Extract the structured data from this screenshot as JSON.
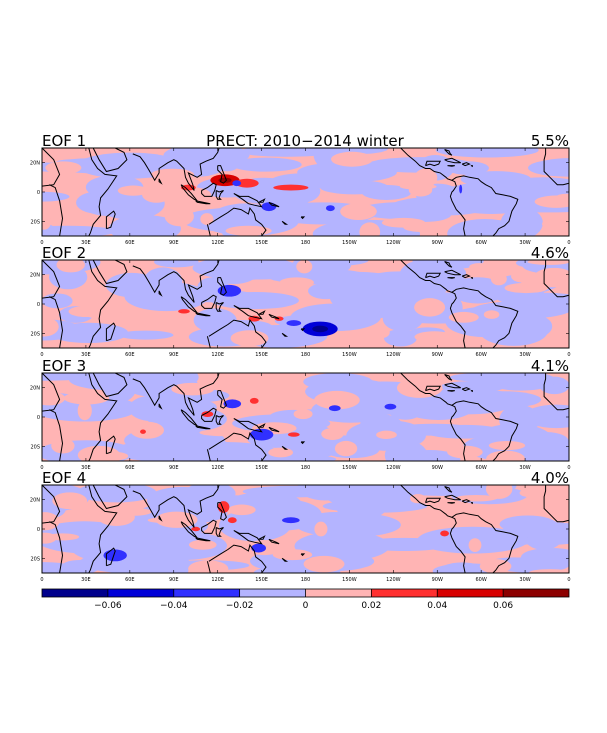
{
  "chart_data": {
    "type": "heatmap",
    "title": "PRECT: 2010−2014 winter",
    "colors": {
      "neg_strong": "#00008c",
      "neg_mid": "#0000d8",
      "neg_weak": "#3030ff",
      "neg_light": "#b4b4ff",
      "pos_light": "#ffb4b4",
      "pos_weak": "#ff3030",
      "pos_mid": "#d80000",
      "pos_strong": "#8c0000",
      "land": "#000000"
    },
    "lon_ticks": [
      "0",
      "30E",
      "60E",
      "90E",
      "120E",
      "150E",
      "180",
      "150W",
      "120W",
      "90W",
      "60W",
      "30W",
      "0"
    ],
    "lon_values": [
      0,
      30,
      60,
      90,
      120,
      150,
      180,
      210,
      240,
      270,
      300,
      330,
      360
    ],
    "lat_ticks": [
      "20N",
      "0",
      "20S"
    ],
    "lat_values": [
      20,
      0,
      -20
    ],
    "xlim": [
      0,
      360
    ],
    "ylim": [
      -30,
      30
    ],
    "panels": [
      {
        "label": "EOF 1",
        "variance": "5.5%",
        "anomalies": [
          {
            "sign": 1,
            "lon": 125,
            "lat": 8,
            "rx": 10,
            "ry": 4,
            "level": 2
          },
          {
            "sign": 1,
            "lon": 140,
            "lat": 6,
            "rx": 8,
            "ry": 3,
            "level": 1
          },
          {
            "sign": 1,
            "lon": 170,
            "lat": 3,
            "rx": 12,
            "ry": 2,
            "level": 1
          },
          {
            "sign": 1,
            "lon": 100,
            "lat": 3,
            "rx": 5,
            "ry": 2,
            "level": 1
          },
          {
            "sign": -1,
            "lon": 155,
            "lat": -10,
            "rx": 5,
            "ry": 3,
            "level": 1
          },
          {
            "sign": -1,
            "lon": 133,
            "lat": 6,
            "rx": 3,
            "ry": 2,
            "level": 1
          },
          {
            "sign": -1,
            "lon": 197,
            "lat": -11,
            "rx": 3,
            "ry": 2,
            "level": 1
          },
          {
            "sign": -1,
            "lon": 286,
            "lat": 2,
            "rx": 1,
            "ry": 3,
            "level": 1
          }
        ]
      },
      {
        "label": "EOF 2",
        "variance": "4.6%",
        "anomalies": [
          {
            "sign": -1,
            "lon": 128,
            "lat": 9,
            "rx": 8,
            "ry": 4,
            "level": 1
          },
          {
            "sign": -1,
            "lon": 190,
            "lat": -17,
            "rx": 12,
            "ry": 5,
            "level": 2
          },
          {
            "sign": -1,
            "lon": 172,
            "lat": -13,
            "rx": 5,
            "ry": 2,
            "level": 1
          },
          {
            "sign": 1,
            "lon": 97,
            "lat": -5,
            "rx": 4,
            "ry": 1.5,
            "level": 1
          },
          {
            "sign": 1,
            "lon": 145,
            "lat": -10,
            "rx": 4,
            "ry": 2,
            "level": 1
          },
          {
            "sign": 1,
            "lon": 162,
            "lat": -10,
            "rx": 3,
            "ry": 1.5,
            "level": 1
          }
        ]
      },
      {
        "label": "EOF 3",
        "variance": "4.1%",
        "anomalies": [
          {
            "sign": -1,
            "lon": 150,
            "lat": -12,
            "rx": 8,
            "ry": 4,
            "level": 1
          },
          {
            "sign": -1,
            "lon": 130,
            "lat": 9,
            "rx": 6,
            "ry": 3,
            "level": 1
          },
          {
            "sign": -1,
            "lon": 200,
            "lat": 6,
            "rx": 4,
            "ry": 2,
            "level": 1
          },
          {
            "sign": -1,
            "lon": 238,
            "lat": 7,
            "rx": 4,
            "ry": 2,
            "level": 1
          },
          {
            "sign": 1,
            "lon": 113,
            "lat": 2,
            "rx": 4,
            "ry": 2,
            "level": 1
          },
          {
            "sign": 1,
            "lon": 145,
            "lat": 11,
            "rx": 3,
            "ry": 2,
            "level": 1
          },
          {
            "sign": 1,
            "lon": 172,
            "lat": -12,
            "rx": 4,
            "ry": 1.5,
            "level": 1
          },
          {
            "sign": 1,
            "lon": 69,
            "lat": -10,
            "rx": 2,
            "ry": 1.5,
            "level": 1
          }
        ]
      },
      {
        "label": "EOF 4",
        "variance": "4.0%",
        "anomalies": [
          {
            "sign": -1,
            "lon": 50,
            "lat": -18,
            "rx": 8,
            "ry": 4,
            "level": 1
          },
          {
            "sign": -1,
            "lon": 170,
            "lat": 6,
            "rx": 6,
            "ry": 2,
            "level": 1
          },
          {
            "sign": -1,
            "lon": 148,
            "lat": -13,
            "rx": 5,
            "ry": 3,
            "level": 1
          },
          {
            "sign": 1,
            "lon": 124,
            "lat": 15,
            "rx": 4,
            "ry": 4,
            "level": 1
          },
          {
            "sign": 1,
            "lon": 130,
            "lat": 6,
            "rx": 3,
            "ry": 2,
            "level": 1
          },
          {
            "sign": 1,
            "lon": 105,
            "lat": 0,
            "rx": 3,
            "ry": 1.5,
            "level": 1
          },
          {
            "sign": 1,
            "lon": 275,
            "lat": -3,
            "rx": 3,
            "ry": 2,
            "level": 1
          }
        ]
      }
    ],
    "colorbar": {
      "labels": [
        "−0.06",
        "−0.04",
        "−0.02",
        "0",
        "0.02",
        "0.04",
        "0.06"
      ],
      "values": [
        -0.06,
        -0.04,
        -0.02,
        0,
        0.02,
        0.04,
        0.06
      ],
      "range": [
        -0.08,
        0.08
      ]
    }
  }
}
